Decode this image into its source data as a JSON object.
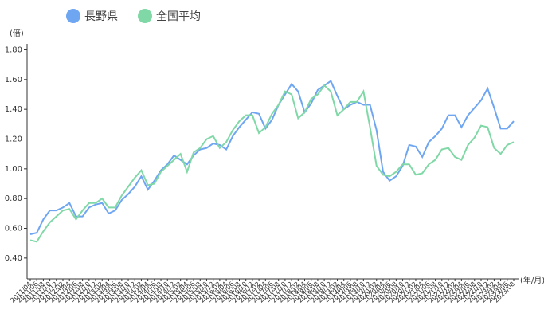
{
  "chart_data": {
    "type": "line",
    "y_unit": "(倍)",
    "x_unit": "(年/月)",
    "categories": [
      "2011/04",
      "2011/06",
      "2011/08",
      "2011/10",
      "2011/12",
      "2012/02",
      "2012/04",
      "2012/06",
      "2012/08",
      "2012/10",
      "2012/12",
      "2013/02",
      "2013/04",
      "2013/06",
      "2013/08",
      "2013/10",
      "2013/12",
      "2014/02",
      "2014/04",
      "2014/06",
      "2014/08",
      "2014/10",
      "2014/12",
      "2015/02",
      "2015/04",
      "2015/06",
      "2015/08",
      "2015/10",
      "2015/12",
      "2016/02",
      "2016/04",
      "2016/06",
      "2016/08",
      "2016/10",
      "2016/12",
      "2017/02",
      "2017/04",
      "2017/06",
      "2017/08",
      "2017/10",
      "2017/12",
      "2018/02",
      "2018/04",
      "2018/06",
      "2018/08",
      "2018/10",
      "2018/12",
      "2019/02",
      "2019/04",
      "2019/06",
      "2019/08",
      "2019/10",
      "2019/12",
      "2020/02",
      "2020/04",
      "2020/06",
      "2020/08",
      "2020/10",
      "2020/12",
      "2021/02",
      "2021/04",
      "2021/06",
      "2021/08",
      "2021/10",
      "2021/12",
      "2022/02",
      "2022/04",
      "2022/06",
      "2022/08",
      "2022/10",
      "2022/12",
      "2023/02",
      "2023/04",
      "2023/06",
      "2023/08"
    ],
    "series": [
      {
        "name": "長野県",
        "color": "#6fa6f2",
        "values": [
          0.56,
          0.57,
          0.66,
          0.72,
          0.72,
          0.74,
          0.77,
          0.68,
          0.68,
          0.74,
          0.76,
          0.77,
          0.7,
          0.72,
          0.79,
          0.83,
          0.88,
          0.95,
          0.86,
          0.92,
          0.99,
          1.03,
          1.09,
          1.06,
          1.03,
          1.09,
          1.13,
          1.14,
          1.17,
          1.16,
          1.13,
          1.22,
          1.28,
          1.33,
          1.38,
          1.37,
          1.27,
          1.33,
          1.43,
          1.5,
          1.57,
          1.52,
          1.38,
          1.44,
          1.53,
          1.56,
          1.59,
          1.49,
          1.4,
          1.43,
          1.45,
          1.43,
          1.43,
          1.26,
          0.98,
          0.92,
          0.95,
          1.02,
          1.16,
          1.15,
          1.08,
          1.18,
          1.22,
          1.27,
          1.36,
          1.36,
          1.28,
          1.36,
          1.41,
          1.46,
          1.54,
          1.41,
          1.27,
          1.27,
          1.32
        ]
      },
      {
        "name": "全国平均",
        "color": "#7fd8a6",
        "values": [
          0.52,
          0.51,
          0.58,
          0.64,
          0.68,
          0.72,
          0.73,
          0.66,
          0.72,
          0.77,
          0.77,
          0.8,
          0.74,
          0.74,
          0.82,
          0.88,
          0.94,
          0.99,
          0.89,
          0.9,
          0.98,
          1.02,
          1.06,
          1.1,
          0.98,
          1.11,
          1.14,
          1.2,
          1.22,
          1.14,
          1.18,
          1.26,
          1.32,
          1.36,
          1.36,
          1.24,
          1.28,
          1.37,
          1.43,
          1.52,
          1.5,
          1.34,
          1.38,
          1.47,
          1.5,
          1.56,
          1.52,
          1.36,
          1.4,
          1.45,
          1.45,
          1.52,
          1.28,
          1.02,
          0.96,
          0.95,
          0.98,
          1.03,
          1.03,
          0.96,
          0.97,
          1.03,
          1.06,
          1.13,
          1.14,
          1.08,
          1.06,
          1.16,
          1.21,
          1.29,
          1.28,
          1.14,
          1.1,
          1.16,
          1.18
        ]
      }
    ],
    "ylim": [
      0.26,
      1.84
    ],
    "yticks": [
      {
        "value": 0.4,
        "label": "0.40"
      },
      {
        "value": 0.6,
        "label": "0.60"
      },
      {
        "value": 0.8,
        "label": "0.80"
      },
      {
        "value": 1.0,
        "label": "1.00"
      },
      {
        "value": 1.2,
        "label": "1.20"
      },
      {
        "value": 1.4,
        "label": "1.40"
      },
      {
        "value": 1.6,
        "label": "1.60"
      },
      {
        "value": 1.8,
        "label": "1.80"
      }
    ],
    "legend": "top-left"
  }
}
